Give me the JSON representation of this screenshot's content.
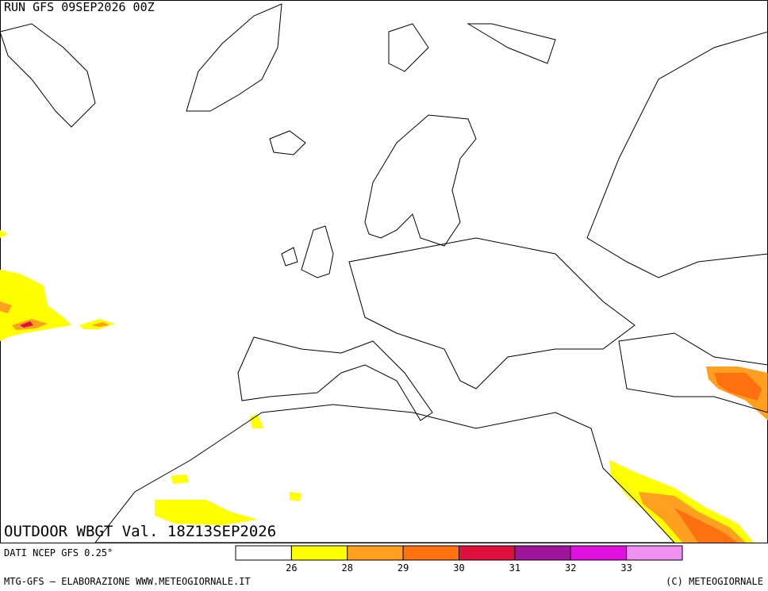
{
  "header": {
    "run": "RUN GFS 09SEP2026 00Z"
  },
  "map": {
    "title": "OUTDOOR WBGT Val. 18Z13SEP2026"
  },
  "footer": {
    "source": "DATI NCEP GFS 0.25°",
    "credit": "MTG-GFS — ELABORAZIONE WWW.METEOGIORNALE.IT",
    "copyright": "(C) METEOGIORNALE"
  },
  "legend": {
    "colors": [
      "#ffffff",
      "#ffff00",
      "#ffa020",
      "#ff7010",
      "#e0103c",
      "#a0149c",
      "#e010e0",
      "#f090f0"
    ],
    "ticks": [
      26,
      28,
      29,
      30,
      31,
      32,
      33
    ]
  }
}
